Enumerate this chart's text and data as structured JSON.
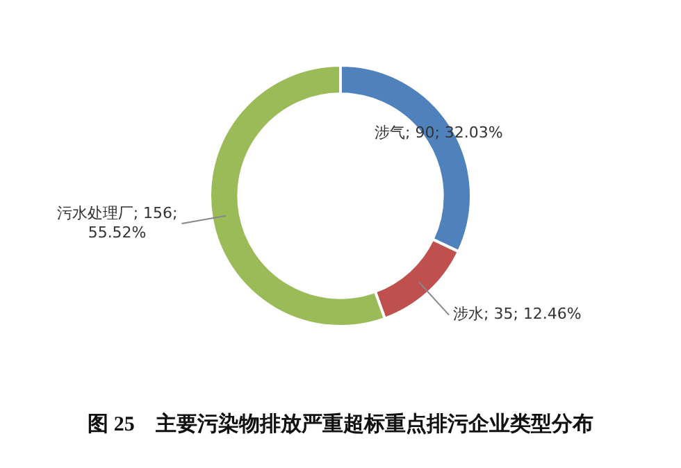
{
  "chart_data": {
    "type": "donut",
    "title": "图 25　主要污染物排放严重超标重点排污企业类型分布",
    "categories": [
      "涉气",
      "涉水",
      "污水处理厂"
    ],
    "values": [
      90,
      35,
      156
    ],
    "value_labels": [
      "90; 32.03%",
      "35; 12.46%",
      "156; 55.52%"
    ],
    "colors": [
      "#4f81bd",
      "#c0504d",
      "#9bbb59"
    ],
    "legend": false
  }
}
